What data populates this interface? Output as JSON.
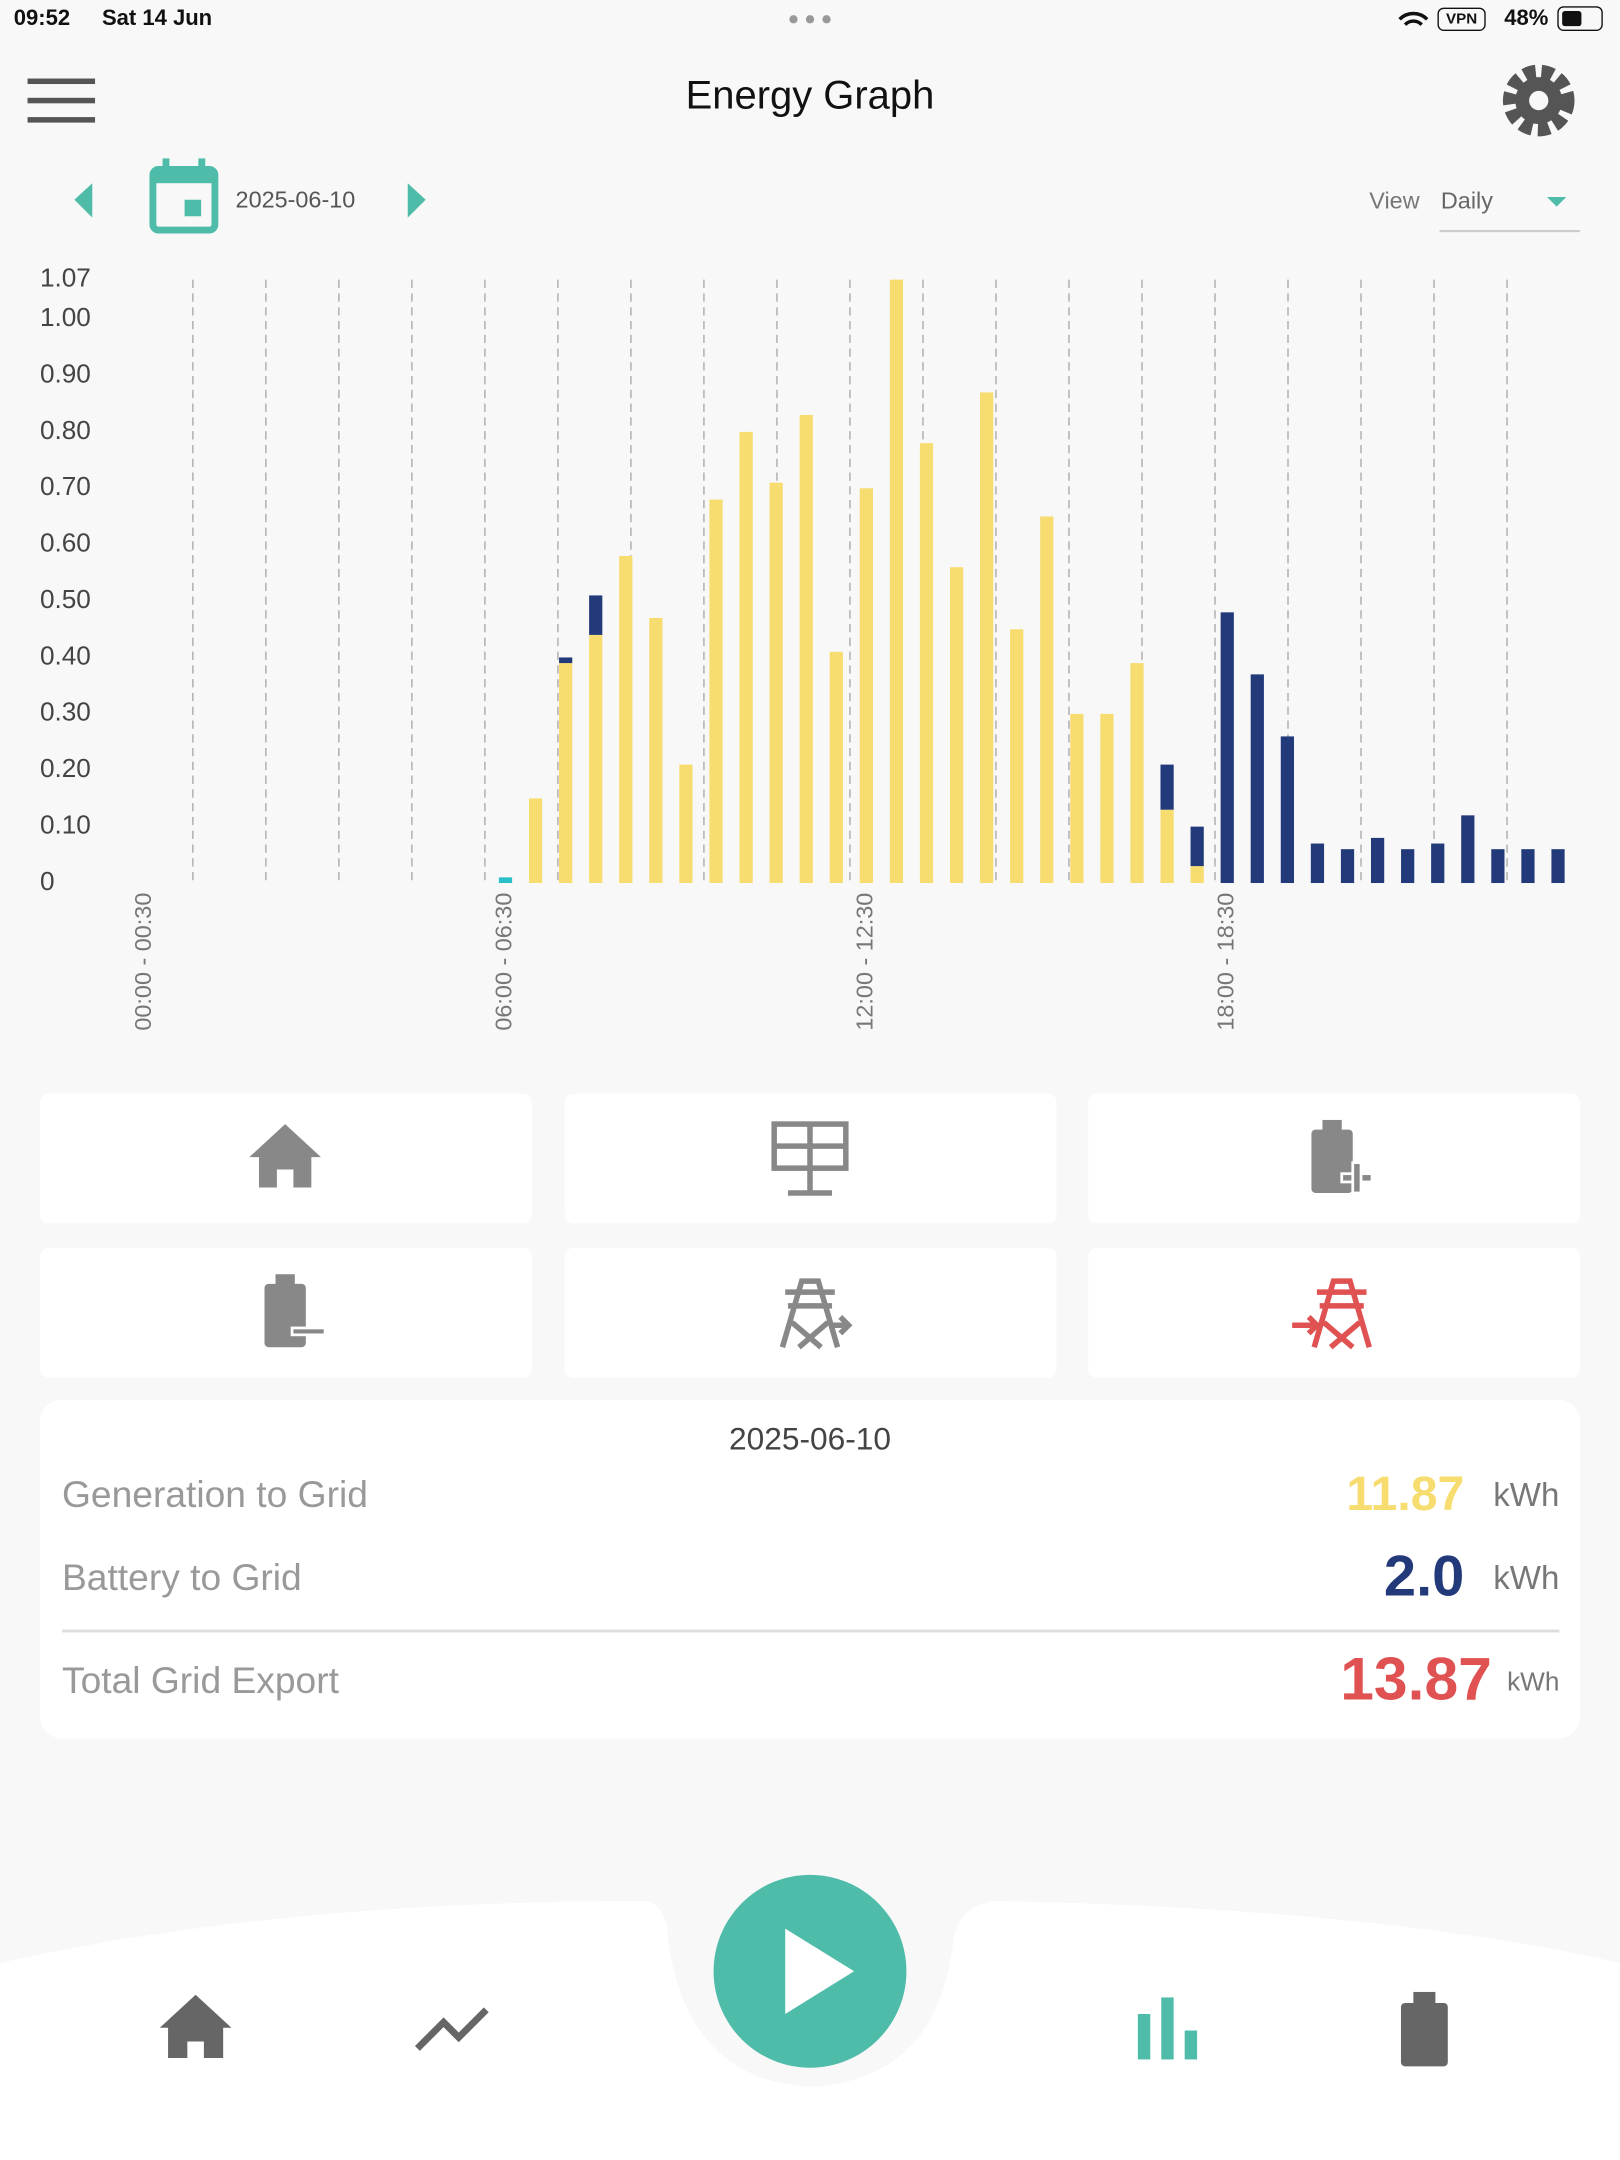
{
  "status_bar": {
    "time": "09:52",
    "date": "Sat 14 Jun",
    "vpn": "VPN",
    "battery": "48%"
  },
  "header": {
    "title": "Energy Graph"
  },
  "date_picker": {
    "date": "2025-06-10",
    "view_label": "View",
    "view_value": "Daily"
  },
  "chart_data": {
    "type": "bar",
    "stacked": true,
    "categories": [
      "00:00 - 00:30",
      null,
      null,
      null,
      null,
      null,
      null,
      null,
      null,
      null,
      null,
      null,
      "06:00 - 06:30",
      null,
      null,
      null,
      null,
      null,
      null,
      null,
      null,
      null,
      null,
      null,
      "12:00 - 12:30",
      null,
      null,
      null,
      null,
      null,
      null,
      null,
      null,
      null,
      null,
      null,
      "18:00 - 18:30",
      null,
      null,
      null,
      null,
      null,
      null,
      null,
      null,
      null,
      null,
      null
    ],
    "series": [
      {
        "name": "Generation to Grid",
        "color": "#f7dc6f",
        "values": [
          null,
          null,
          null,
          null,
          null,
          null,
          null,
          null,
          null,
          null,
          null,
          null,
          null,
          0.15,
          0.39,
          0.44,
          0.58,
          0.47,
          0.21,
          0.68,
          0.8,
          0.71,
          0.83,
          0.41,
          0.7,
          1.07,
          0.78,
          0.56,
          0.87,
          0.45,
          0.65,
          0.3,
          0.3,
          0.39,
          0.13,
          0.03,
          null,
          null,
          null,
          null,
          null,
          null,
          null,
          null,
          null,
          null,
          null,
          null
        ]
      },
      {
        "name": "Battery to Grid",
        "color": "#233a7a",
        "values": [
          null,
          null,
          null,
          null,
          null,
          null,
          null,
          null,
          null,
          null,
          null,
          null,
          null,
          null,
          0.01,
          0.07,
          null,
          null,
          null,
          null,
          null,
          null,
          null,
          null,
          null,
          null,
          null,
          null,
          null,
          null,
          null,
          null,
          null,
          null,
          0.08,
          0.07,
          0.48,
          0.37,
          0.26,
          0.07,
          0.06,
          0.08,
          0.06,
          0.07,
          0.12,
          0.06,
          0.06,
          0.06
        ]
      },
      {
        "color": "#2bbfc9",
        "values": [
          null,
          null,
          null,
          null,
          null,
          null,
          null,
          null,
          null,
          null,
          null,
          null,
          0.01,
          null,
          null,
          null,
          null,
          null,
          null,
          null,
          null,
          null,
          null,
          null,
          null,
          null,
          null,
          null,
          null,
          null,
          null,
          null,
          null,
          null,
          null,
          null,
          null,
          null,
          null,
          null,
          null,
          null,
          null,
          null,
          null,
          null,
          null,
          null
        ]
      }
    ],
    "ylim": [
      0,
      1.07
    ],
    "yticks": [
      0,
      {
        "value": 0.1,
        "label": "0.10"
      },
      {
        "value": 0.2,
        "label": "0.20"
      },
      {
        "value": 0.3,
        "label": "0.30"
      },
      {
        "value": 0.4,
        "label": "0.40"
      },
      {
        "value": 0.5,
        "label": "0.50"
      },
      {
        "value": 0.6,
        "label": "0.60"
      },
      {
        "value": 0.7,
        "label": "0.70"
      },
      {
        "value": 0.8,
        "label": "0.80"
      },
      {
        "value": 0.9,
        "label": "0.90"
      },
      {
        "value": 1,
        "label": "1.00"
      },
      1.07
    ]
  },
  "summary": {
    "date": "2025-06-10",
    "rows": [
      {
        "label": "Generation to Grid",
        "value": "11.87",
        "unit": "kWh"
      },
      {
        "label": "Battery to Grid",
        "value": "2.0",
        "unit": "kWh"
      },
      {
        "label": "Total Grid Export",
        "value": "13.87",
        "unit": "kWh"
      }
    ]
  }
}
